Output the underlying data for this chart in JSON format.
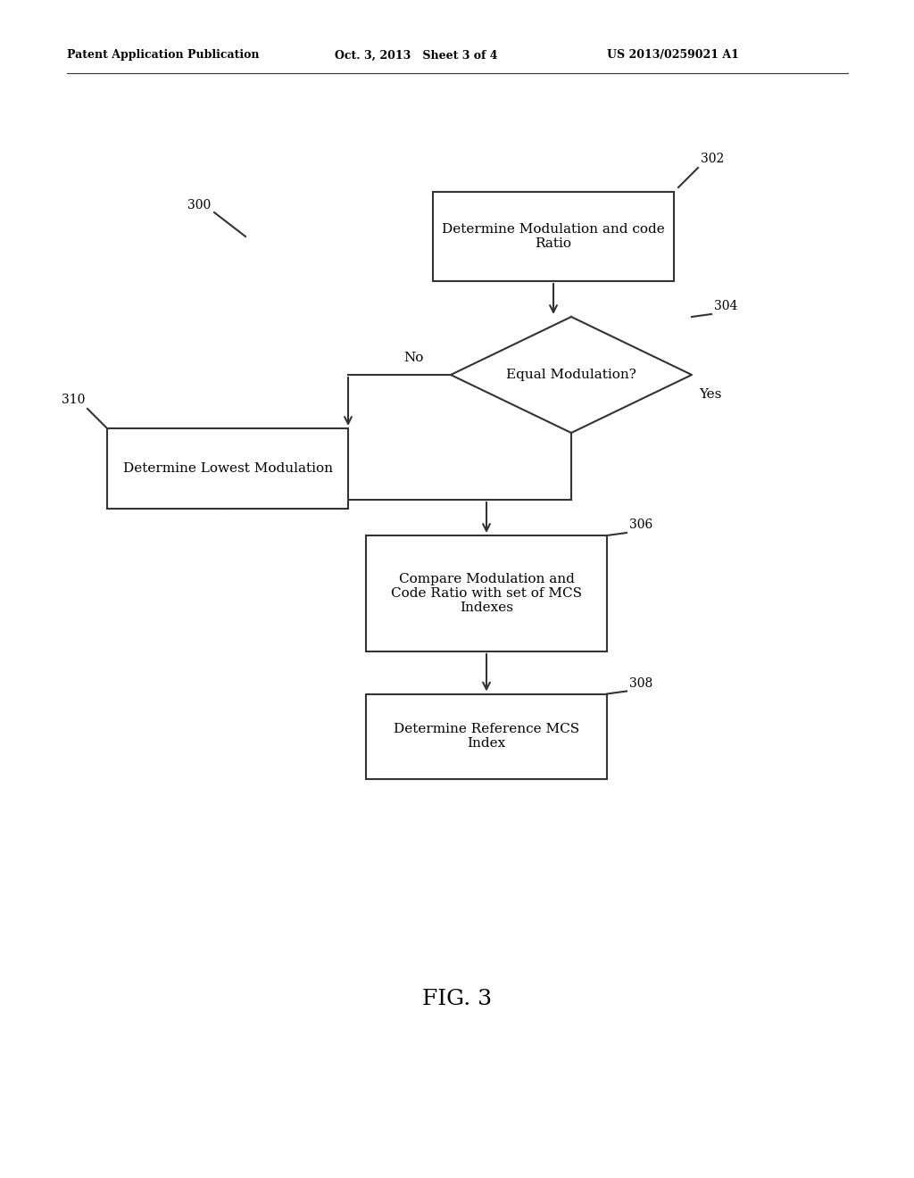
{
  "bg_color": "#ffffff",
  "line_color": "#333333",
  "header_left": "Patent Application Publication",
  "header_mid": "Oct. 3, 2013   Sheet 3 of 4",
  "header_right": "US 2013/0259021 A1",
  "fig_label": "FIG. 3",
  "label_300": "300",
  "label_302": "302",
  "label_304": "304",
  "label_306": "306",
  "label_308": "308",
  "label_310": "310",
  "box302_text": "Determine Modulation and code\nRatio",
  "diamond304_text": "Equal Modulation?",
  "box310_text": "Determine Lowest Modulation",
  "box306_text": "Compare Modulation and\nCode Ratio with set of MCS\nIndexes",
  "box308_text": "Determine Reference MCS\nIndex",
  "no_label": "No",
  "yes_label": "Yes"
}
